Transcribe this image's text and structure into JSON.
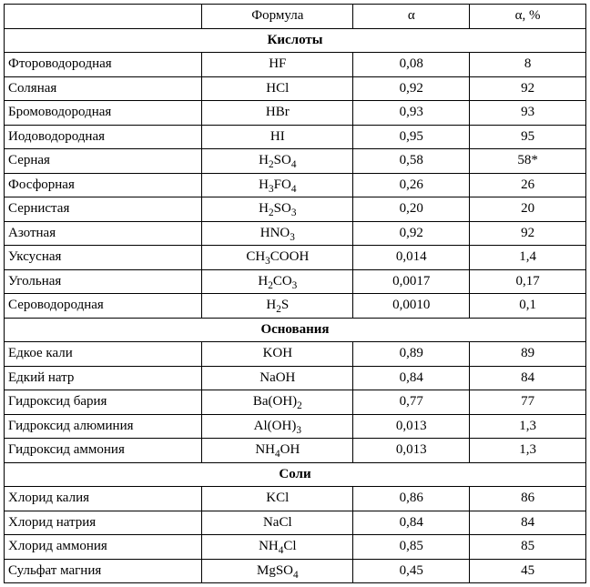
{
  "headers": {
    "name": "",
    "formula": "Формула",
    "alpha": "α",
    "alpha_pct": "α, %"
  },
  "sections": [
    {
      "title": "Кислоты",
      "rows": [
        {
          "name": "Фтороводородная",
          "formula": "HF",
          "alpha": "0,08",
          "alpha_pct": "8"
        },
        {
          "name": "Соляная",
          "formula": "HCl",
          "alpha": "0,92",
          "alpha_pct": "92"
        },
        {
          "name": "Бромоводородная",
          "formula": "HBr",
          "alpha": "0,93",
          "alpha_pct": "93"
        },
        {
          "name": "Иодоводородная",
          "formula": "HI",
          "alpha": "0,95",
          "alpha_pct": "95"
        },
        {
          "name": "Серная",
          "formula": "H<sub>2</sub>SO<sub>4</sub>",
          "alpha": "0,58",
          "alpha_pct": "58*"
        },
        {
          "name": "Фосфорная",
          "formula": "H<sub>3</sub>FO<sub>4</sub>",
          "alpha": "0,26",
          "alpha_pct": "26"
        },
        {
          "name": "Сернистая",
          "formula": "H<sub>2</sub>SO<sub>3</sub>",
          "alpha": "0,20",
          "alpha_pct": "20"
        },
        {
          "name": "Азотная",
          "formula": "HNO<sub>3</sub>",
          "alpha": "0,92",
          "alpha_pct": "92"
        },
        {
          "name": "Уксусная",
          "formula": "CH<sub>3</sub>COOH",
          "alpha": "0,014",
          "alpha_pct": "1,4"
        },
        {
          "name": "Угольная",
          "formula": "H<sub>2</sub>CO<sub>3</sub>",
          "alpha": "0,0017",
          "alpha_pct": "0,17"
        },
        {
          "name": "Сероводородная",
          "formula": "H<sub>2</sub>S",
          "alpha": "0,0010",
          "alpha_pct": "0,1"
        }
      ]
    },
    {
      "title": "Основания",
      "rows": [
        {
          "name": "Едкое кали",
          "formula": "KOH",
          "alpha": "0,89",
          "alpha_pct": "89"
        },
        {
          "name": "Едкий натр",
          "formula": "NaOH",
          "alpha": "0,84",
          "alpha_pct": "84"
        },
        {
          "name": "Гидроксид бария",
          "formula": "Ba(OH)<sub>2</sub>",
          "alpha": "0,77",
          "alpha_pct": "77"
        },
        {
          "name": "Гидроксид алюминия",
          "formula": "Al(OH)<sub>3</sub>",
          "alpha": "0,013",
          "alpha_pct": "1,3"
        },
        {
          "name": "Гидроксид аммония",
          "formula": "NH<sub>4</sub>OH",
          "alpha": "0,013",
          "alpha_pct": "1,3"
        }
      ]
    },
    {
      "title": "Соли",
      "rows": [
        {
          "name": "Хлорид калия",
          "formula": "KCl",
          "alpha": "0,86",
          "alpha_pct": "86"
        },
        {
          "name": "Хлорид натрия",
          "formula": "NaCl",
          "alpha": "0,84",
          "alpha_pct": "84"
        },
        {
          "name": "Хлорид аммония",
          "formula": "NH<sub>4</sub>Cl",
          "alpha": "0,85",
          "alpha_pct": "85"
        },
        {
          "name": "Сульфат магния",
          "formula": "MgSO<sub>4</sub>",
          "alpha": "0,45",
          "alpha_pct": "45"
        }
      ]
    }
  ],
  "style": {
    "font_family": "Times New Roman",
    "font_size_pt": 12,
    "border_color": "#000000",
    "background_color": "#ffffff",
    "text_color": "#000000"
  }
}
